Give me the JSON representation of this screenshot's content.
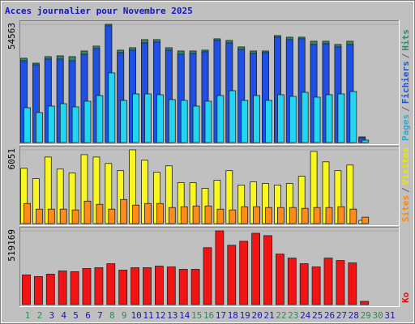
{
  "chart_data": [
    {
      "type": "bar",
      "title": "Acces journalier pour Novembre 2025",
      "legend_separator": "/",
      "series": [
        {
          "name": "Pages",
          "color": "#22d6f2",
          "label_color": "#33aacc",
          "values": [
            16082,
            13838,
            16830,
            17952,
            16456,
            19074,
            21692,
            32164,
            19448,
            22440,
            22440,
            22066,
            19822,
            19448,
            16830,
            19074,
            21692,
            23936,
            19448,
            21692,
            19448,
            22066,
            21318,
            23188,
            20944,
            22066,
            22440,
            23562,
            1122,
            null,
            null
          ]
        },
        {
          "name": "Fichiers",
          "color": "#1e50e6",
          "label_color": "#2255cc",
          "values": [
            37774,
            35904,
            38522,
            38522,
            37774,
            40766,
            43384,
            53856,
            41514,
            42636,
            46002,
            46376,
            42636,
            40766,
            41140,
            41888,
            47124,
            46002,
            43010,
            41140,
            41514,
            48620,
            47498,
            47872,
            45254,
            45628,
            44132,
            45254,
            2244,
            null,
            null
          ]
        },
        {
          "name": "Hits",
          "color": "#2e8b66",
          "label_color": "#338866",
          "values": [
            38896,
            36652,
            39644,
            40018,
            39644,
            42262,
            44506,
            54563,
            42636,
            43758,
            47498,
            47498,
            43758,
            42262,
            42262,
            42636,
            47872,
            47124,
            44132,
            42262,
            42262,
            49368,
            48620,
            48620,
            46750,
            46750,
            45254,
            46750,
            2618,
            null,
            null
          ]
        }
      ],
      "ylim": [
        0,
        54563
      ],
      "yticks": [
        54563
      ]
    },
    {
      "type": "bar",
      "legend_separator": "/",
      "series": [
        {
          "name": "Sites",
          "color": "#ff8c1a",
          "label_color": "#ff8800",
          "values": [
            1645,
            1184,
            1184,
            1184,
            1119,
            1842,
            1579,
            1184,
            1974,
            1513,
            1645,
            1645,
            1316,
            1382,
            1448,
            1448,
            1184,
            1119,
            1382,
            1382,
            1316,
            1316,
            1316,
            1250,
            1316,
            1316,
            1382,
            1184,
            526,
            null,
            null
          ]
        },
        {
          "name": "Visites",
          "color": "#f8f820",
          "label_color": "#e8e800",
          "values": [
            4540,
            3685,
            5461,
            4474,
            4145,
            5659,
            5461,
            4935,
            4343,
            6051,
            5198,
            4211,
            4738,
            3356,
            3356,
            2895,
            3553,
            4343,
            3158,
            3422,
            3290,
            3158,
            3290,
            3882,
            5922,
            5067,
            4343,
            4803,
            263,
            null,
            null
          ]
        }
      ],
      "ylim": [
        0,
        6051
      ],
      "yticks": [
        6051
      ]
    },
    {
      "type": "bar",
      "series": [
        {
          "name": "Ko",
          "color": "#f21414",
          "label_color": "#dd1111",
          "values": [
            208791,
            197505,
            214434,
            237006,
            231363,
            253935,
            259578,
            287793,
            242649,
            259578,
            259578,
            270864,
            265221,
            248292,
            248292,
            400653,
            519169,
            417582,
            445797,
            502227,
            485298,
            355509,
            327294,
            287793,
            265221,
            327294,
            310365,
            293436,
            22572,
            null,
            null
          ]
        }
      ],
      "ylim": [
        0,
        519169
      ],
      "yticks": [
        519169
      ],
      "categories": [
        1,
        2,
        3,
        4,
        5,
        6,
        7,
        8,
        9,
        10,
        11,
        12,
        13,
        14,
        15,
        16,
        17,
        18,
        19,
        20,
        21,
        22,
        23,
        24,
        25,
        26,
        27,
        28,
        29,
        30,
        31
      ],
      "highlight_categories": [
        1,
        2,
        8,
        9,
        15,
        16,
        22,
        23,
        29,
        30
      ],
      "highlight_color": "#2e8b57",
      "category_color": "#1a1aa6"
    }
  ]
}
